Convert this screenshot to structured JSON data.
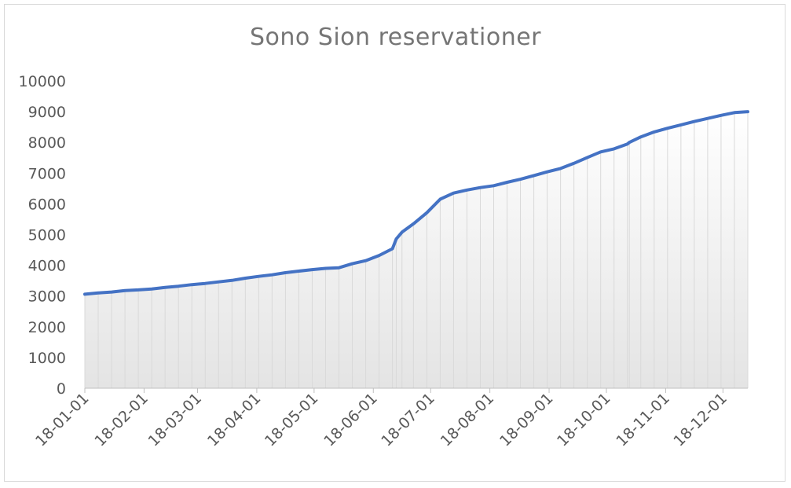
{
  "chart_data": {
    "type": "area",
    "title": "Sono Sion reservationer",
    "xlabel": "",
    "ylabel": "",
    "ylim": [
      0,
      10000
    ],
    "y_ticks": [
      0,
      1000,
      2000,
      3000,
      4000,
      5000,
      6000,
      7000,
      8000,
      9000,
      10000
    ],
    "x_tick_labels": [
      "18-01-01",
      "18-02-01",
      "18-03-01",
      "18-04-01",
      "18-05-01",
      "18-06-01",
      "18-07-01",
      "18-08-01",
      "18-09-01",
      "18-10-01",
      "18-11-01",
      "18-12-01"
    ],
    "grid": "none",
    "legend": "none",
    "line_color": "#4472c4",
    "drop_line_color": "#d9d9d9",
    "series": [
      {
        "x": [
          "2018-01-01",
          "2018-01-08",
          "2018-01-15",
          "2018-01-22",
          "2018-01-29",
          "2018-02-05",
          "2018-02-12",
          "2018-02-19",
          "2018-02-26",
          "2018-03-05",
          "2018-03-12",
          "2018-03-19",
          "2018-03-26",
          "2018-04-02",
          "2018-04-09",
          "2018-04-16",
          "2018-04-23",
          "2018-04-30",
          "2018-05-07",
          "2018-05-14",
          "2018-05-21",
          "2018-05-28",
          "2018-06-04",
          "2018-06-11",
          "2018-06-13",
          "2018-06-16",
          "2018-06-22",
          "2018-06-29",
          "2018-07-06",
          "2018-07-13",
          "2018-07-20",
          "2018-07-27",
          "2018-08-03",
          "2018-08-10",
          "2018-08-17",
          "2018-08-24",
          "2018-08-31",
          "2018-09-07",
          "2018-09-14",
          "2018-09-21",
          "2018-09-28",
          "2018-10-05",
          "2018-10-12",
          "2018-10-13",
          "2018-10-19",
          "2018-10-26",
          "2018-11-02",
          "2018-11-09",
          "2018-11-16",
          "2018-11-23",
          "2018-11-30",
          "2018-12-07",
          "2018-12-14"
        ],
        "values": [
          3060,
          3100,
          3130,
          3180,
          3200,
          3230,
          3280,
          3320,
          3370,
          3410,
          3460,
          3510,
          3580,
          3640,
          3690,
          3760,
          3810,
          3860,
          3900,
          3920,
          4050,
          4150,
          4320,
          4540,
          4860,
          5080,
          5350,
          5710,
          6150,
          6350,
          6450,
          6530,
          6590,
          6700,
          6800,
          6920,
          7040,
          7150,
          7320,
          7510,
          7690,
          7790,
          7950,
          8000,
          8180,
          8340,
          8460,
          8570,
          8680,
          8780,
          8880,
          8970,
          9000
        ]
      }
    ]
  }
}
